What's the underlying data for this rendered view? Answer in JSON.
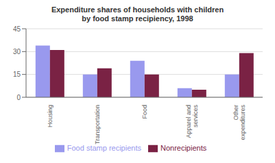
{
  "chart_data": {
    "type": "bar",
    "title": "Expenditure shares of households with children\nby food stamp recipiency, 1998",
    "categories": [
      "Housing",
      "Transportation",
      "Food",
      "Apparel and\nservices",
      "Other\nexpenditures"
    ],
    "series": [
      {
        "name": "Food stamp recipients",
        "color": "#9999ee",
        "values": [
          34,
          15,
          24,
          6,
          15
        ]
      },
      {
        "name": "Nonrecipients",
        "color": "#7a2244",
        "values": [
          31,
          19,
          15,
          5,
          29
        ]
      }
    ],
    "ylim": [
      0,
      45
    ],
    "yticks": [
      0,
      15,
      30,
      45
    ],
    "grid": true,
    "legend": "bottom"
  }
}
